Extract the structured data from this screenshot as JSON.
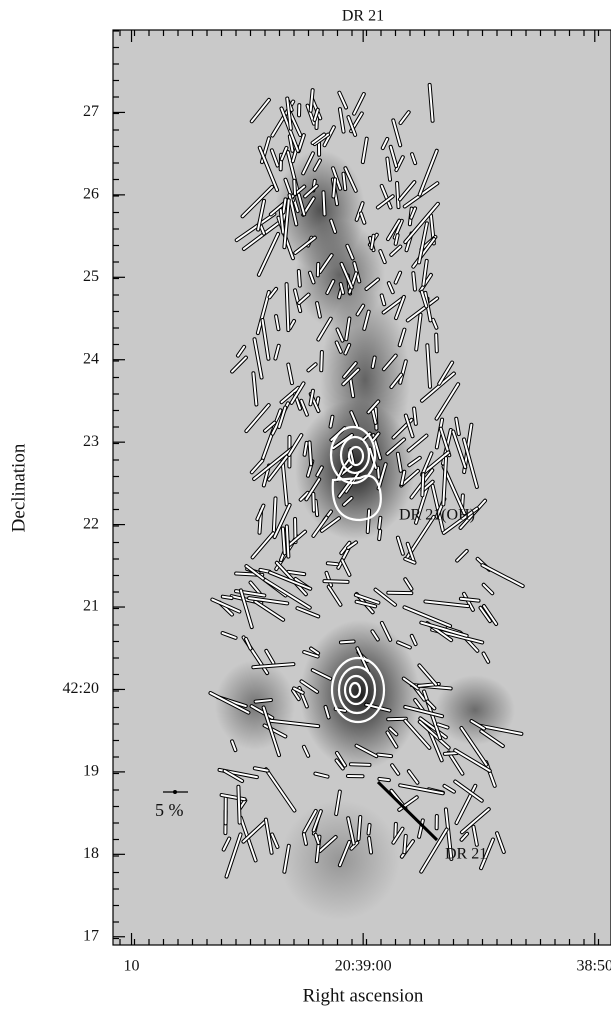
{
  "chart_data": {
    "type": "map",
    "title": "DR 21",
    "x_label": "Right ascension",
    "y_label": "Declination",
    "xlim": [
      10.8,
      -10.7
    ],
    "xticks": [
      10,
      {
        "value": 0,
        "label": "20:39:00"
      },
      {
        "value": -10,
        "label": "38:50"
      }
    ],
    "ylim": [
      16.9,
      28.0
    ],
    "yticks": [
      17,
      18,
      19,
      {
        "value": 20,
        "label": "42:20"
      },
      21,
      22,
      23,
      24,
      25,
      26,
      27
    ],
    "annotations": [
      "DR 21(OH)",
      "DR 21",
      "5 %"
    ]
  }
}
